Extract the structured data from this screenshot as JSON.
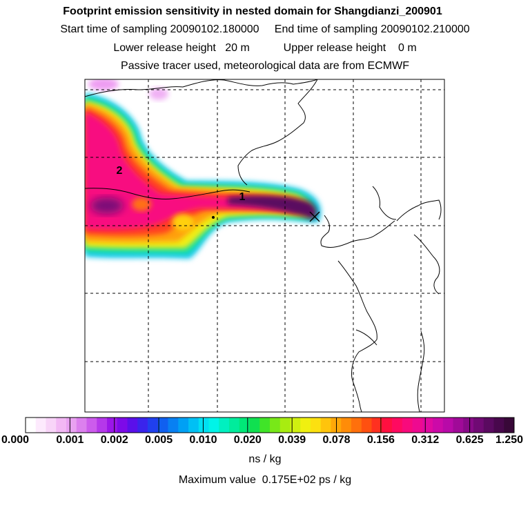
{
  "header": {
    "title": "Footprint emission sensitivity in nested domain for Shangdianzi_200901",
    "line2": "Start time of sampling 20090102.180000     End time of sampling 20090102.210000",
    "line3": "Lower release height   20 m           Upper release height    0 m",
    "line4": "Passive tracer used, meteorological data are from ECMWF"
  },
  "map": {
    "release_site_marker": "x-marker",
    "plume_labels": [
      "1",
      "2"
    ]
  },
  "colorbar": {
    "tick_labels": [
      "0.000",
      "0.001",
      "0.002",
      "0.005",
      "0.010",
      "0.020",
      "0.039",
      "0.078",
      "0.156",
      "0.312",
      "0.625",
      "1.250"
    ],
    "units": "ns / kg",
    "colors": [
      "#ffffff",
      "#fdeafd",
      "#f8d4f8",
      "#f2b8f4",
      "#e9a2f1",
      "#dc80ee",
      "#cc5cec",
      "#b538ea",
      "#9b16e8",
      "#7d0ae8",
      "#5a10ea",
      "#3a24ec",
      "#2040ee",
      "#1060f0",
      "#0880f2",
      "#00a0f4",
      "#00c0f4",
      "#00e0f2",
      "#00f4e8",
      "#00f0c0",
      "#00ec9c",
      "#00e878",
      "#10e050",
      "#40e428",
      "#78e818",
      "#a8ec10",
      "#d0f010",
      "#f0f010",
      "#fce010",
      "#ffc40c",
      "#ffa808",
      "#ff8c08",
      "#ff700c",
      "#ff5010",
      "#ff3020",
      "#ff1040",
      "#ff0a60",
      "#f80a7c",
      "#ee0a90",
      "#e00aa0",
      "#cc0aa8",
      "#b80aa8",
      "#a00a98",
      "#880a88",
      "#700a74",
      "#5a0a60",
      "#48084c",
      "#380838"
    ]
  },
  "max_value_text": "Maximum value  0.175E+02 ps / kg"
}
